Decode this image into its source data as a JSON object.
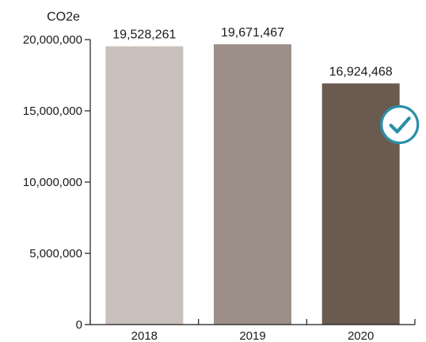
{
  "chart_data": {
    "type": "bar",
    "ylabel": "CO2e",
    "categories": [
      "2018",
      "2019",
      "2020"
    ],
    "values": [
      19528261,
      19671467,
      16924468
    ],
    "value_labels": [
      "19,528,261",
      "19,671,467",
      "16,924,468"
    ],
    "bar_colors": [
      "#c9c0bb",
      "#9b8f88",
      "#6b5a50"
    ],
    "ylim": [
      0,
      20000000
    ],
    "yticks": [
      0,
      5000000,
      10000000,
      15000000,
      20000000
    ],
    "ytick_labels": [
      "0",
      "5,000,000",
      "10,000,000",
      "15,000,000",
      "20,000,000"
    ],
    "grid": false,
    "annotation": {
      "icon": "checkmark-circle-icon",
      "attached_to": "2020",
      "color": "#2a8fa8"
    }
  }
}
